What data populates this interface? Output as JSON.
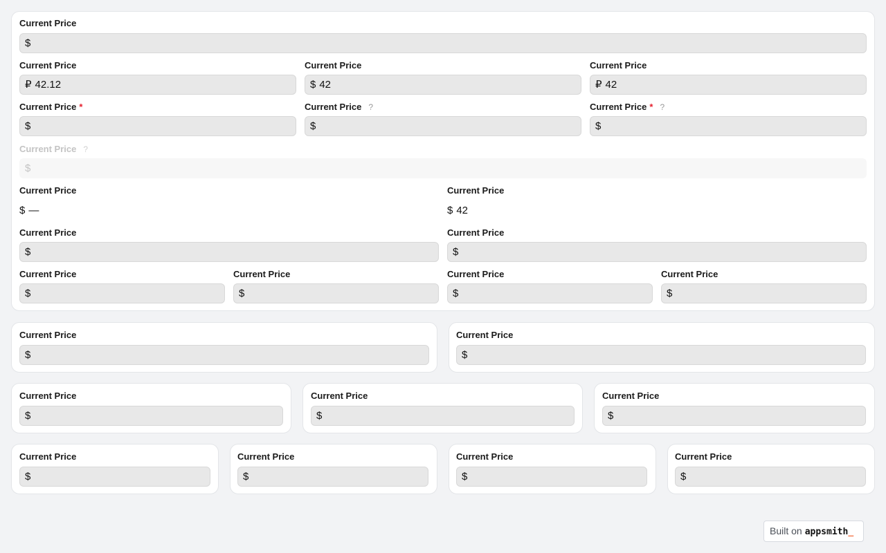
{
  "field_label": "Current Price",
  "help_icon": "question-mark-icon",
  "fields": [
    {
      "prefix": "$",
      "value": ""
    },
    {
      "prefix": "₽",
      "value": "42.12"
    },
    {
      "prefix": "$",
      "value": "42"
    },
    {
      "prefix": "₽",
      "value": "42"
    },
    {
      "prefix": "$",
      "value": "",
      "required": true
    },
    {
      "prefix": "$",
      "value": "",
      "help": "?"
    },
    {
      "prefix": "$",
      "value": "",
      "required": true,
      "help": "?"
    },
    {
      "prefix": "$",
      "value": "",
      "help": "?",
      "disabled": true
    },
    {
      "prefix": "$",
      "value": "—",
      "readonly": true
    },
    {
      "prefix": "$",
      "value": "42",
      "readonly": true
    },
    {
      "prefix": "$",
      "value": ""
    },
    {
      "prefix": "$",
      "value": ""
    },
    {
      "prefix": "$",
      "value": ""
    },
    {
      "prefix": "$",
      "value": ""
    },
    {
      "prefix": "$",
      "value": ""
    },
    {
      "prefix": "$",
      "value": ""
    },
    {
      "prefix": "$",
      "value": ""
    },
    {
      "prefix": "$",
      "value": ""
    },
    {
      "prefix": "$",
      "value": ""
    },
    {
      "prefix": "$",
      "value": ""
    },
    {
      "prefix": "$",
      "value": ""
    },
    {
      "prefix": "$",
      "value": ""
    },
    {
      "prefix": "$",
      "value": ""
    },
    {
      "prefix": "$",
      "value": ""
    },
    {
      "prefix": "$",
      "value": ""
    }
  ],
  "footer": {
    "built_on": "Built on",
    "brand": "appsmith",
    "brand_suffix": "_",
    "accent": "#f26b3a"
  }
}
